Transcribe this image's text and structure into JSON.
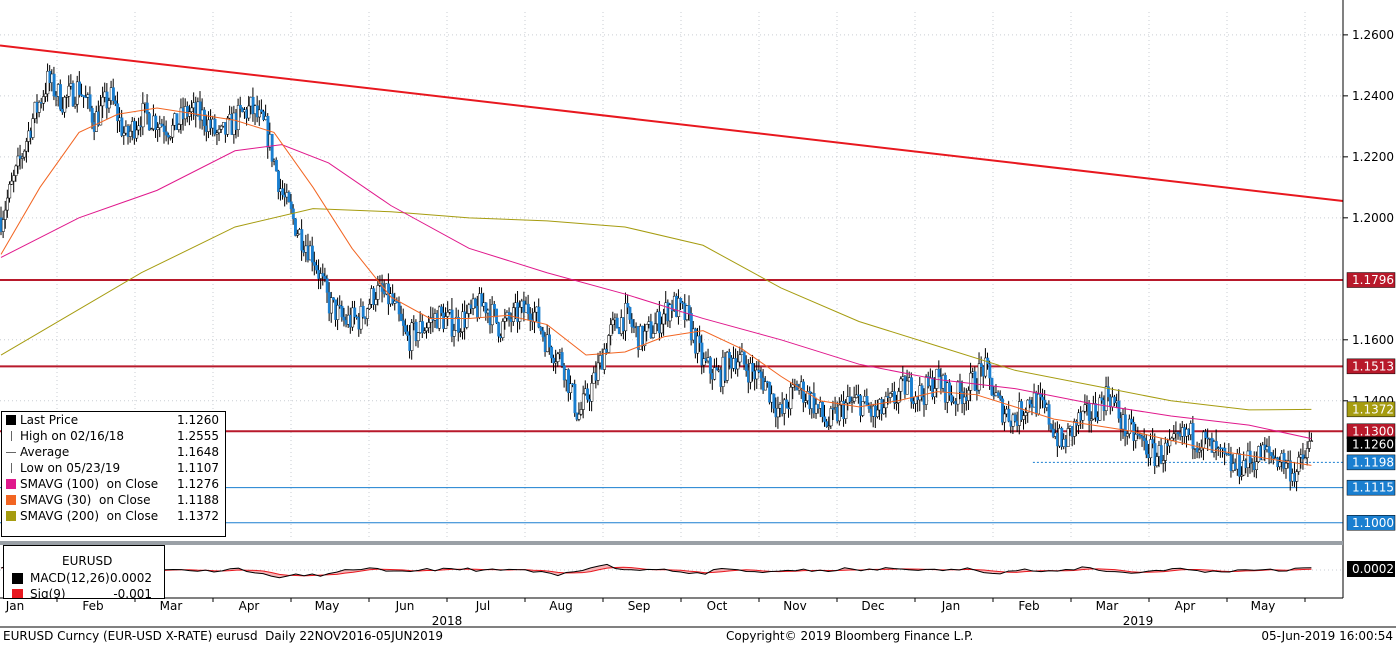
{
  "chart_data": {
    "type": "candlestick",
    "y_axis": {
      "position": "right",
      "ticks": [
        "1.2600",
        "1.2400",
        "1.2200",
        "1.2000",
        "1.1600",
        "1.1400"
      ],
      "ylim": [
        1.095,
        1.2675
      ]
    },
    "x_axis": {
      "months": [
        "Jan",
        "Feb",
        "Mar",
        "Apr",
        "May",
        "Jun",
        "Jul",
        "Aug",
        "Sep",
        "Oct",
        "Nov",
        "Dec",
        "Jan",
        "Feb",
        "Mar",
        "Apr",
        "May"
      ],
      "years": [
        "2018",
        "2019"
      ]
    },
    "price_series": [
      [
        0,
        1.2
      ],
      [
        0.2,
        1.215
      ],
      [
        0.4,
        1.232
      ],
      [
        0.6,
        1.245
      ],
      [
        0.8,
        1.238
      ],
      [
        1.0,
        1.243
      ],
      [
        1.2,
        1.232
      ],
      [
        1.4,
        1.24
      ],
      [
        1.6,
        1.226
      ],
      [
        1.8,
        1.234
      ],
      [
        2.0,
        1.232
      ],
      [
        2.2,
        1.229
      ],
      [
        2.4,
        1.235
      ],
      [
        2.6,
        1.233
      ],
      [
        2.8,
        1.226
      ],
      [
        3.0,
        1.232
      ],
      [
        3.2,
        1.236
      ],
      [
        3.4,
        1.229
      ],
      [
        3.6,
        1.208
      ],
      [
        3.8,
        1.196
      ],
      [
        4.0,
        1.188
      ],
      [
        4.2,
        1.172
      ],
      [
        4.4,
        1.166
      ],
      [
        4.6,
        1.167
      ],
      [
        4.8,
        1.176
      ],
      [
        5.0,
        1.173
      ],
      [
        5.2,
        1.16
      ],
      [
        5.4,
        1.164
      ],
      [
        5.6,
        1.168
      ],
      [
        5.8,
        1.165
      ],
      [
        6.0,
        1.168
      ],
      [
        6.2,
        1.172
      ],
      [
        6.4,
        1.164
      ],
      [
        6.6,
        1.168
      ],
      [
        6.8,
        1.171
      ],
      [
        7.0,
        1.159
      ],
      [
        7.2,
        1.153
      ],
      [
        7.4,
        1.135
      ],
      [
        7.6,
        1.146
      ],
      [
        7.8,
        1.162
      ],
      [
        8.0,
        1.168
      ],
      [
        8.2,
        1.16
      ],
      [
        8.4,
        1.165
      ],
      [
        8.6,
        1.172
      ],
      [
        8.8,
        1.167
      ],
      [
        9.0,
        1.152
      ],
      [
        9.2,
        1.148
      ],
      [
        9.4,
        1.155
      ],
      [
        9.6,
        1.15
      ],
      [
        9.8,
        1.146
      ],
      [
        10.0,
        1.135
      ],
      [
        10.2,
        1.145
      ],
      [
        10.4,
        1.14
      ],
      [
        10.6,
        1.132
      ],
      [
        10.8,
        1.138
      ],
      [
        11.0,
        1.14
      ],
      [
        11.2,
        1.135
      ],
      [
        11.4,
        1.139
      ],
      [
        11.6,
        1.145
      ],
      [
        11.8,
        1.142
      ],
      [
        12.0,
        1.147
      ],
      [
        12.2,
        1.141
      ],
      [
        12.4,
        1.144
      ],
      [
        12.6,
        1.151
      ],
      [
        12.8,
        1.138
      ],
      [
        13.0,
        1.134
      ],
      [
        13.2,
        1.141
      ],
      [
        13.4,
        1.136
      ],
      [
        13.6,
        1.125
      ],
      [
        13.8,
        1.133
      ],
      [
        14.0,
        1.136
      ],
      [
        14.2,
        1.143
      ],
      [
        14.4,
        1.131
      ],
      [
        14.6,
        1.127
      ],
      [
        14.8,
        1.122
      ],
      [
        15.0,
        1.124
      ],
      [
        15.2,
        1.129
      ],
      [
        15.4,
        1.127
      ],
      [
        15.6,
        1.122
      ],
      [
        15.8,
        1.118
      ],
      [
        16.0,
        1.12
      ],
      [
        16.2,
        1.123
      ],
      [
        16.4,
        1.121
      ],
      [
        16.6,
        1.116
      ],
      [
        16.8,
        1.126
      ]
    ],
    "sma100": [
      [
        0,
        1.187
      ],
      [
        1,
        1.2
      ],
      [
        2,
        1.209
      ],
      [
        3,
        1.222
      ],
      [
        3.6,
        1.224
      ],
      [
        4.2,
        1.218
      ],
      [
        5,
        1.204
      ],
      [
        6,
        1.19
      ],
      [
        7,
        1.182
      ],
      [
        8,
        1.175
      ],
      [
        9,
        1.167
      ],
      [
        10,
        1.16
      ],
      [
        11,
        1.152
      ],
      [
        12,
        1.147
      ],
      [
        13,
        1.144
      ],
      [
        14,
        1.139
      ],
      [
        15,
        1.135
      ],
      [
        16,
        1.132
      ],
      [
        16.8,
        1.1276
      ]
    ],
    "sma30": [
      [
        0,
        1.188
      ],
      [
        0.5,
        1.21
      ],
      [
        1,
        1.228
      ],
      [
        1.5,
        1.234
      ],
      [
        2,
        1.236
      ],
      [
        2.5,
        1.234
      ],
      [
        3,
        1.232
      ],
      [
        3.5,
        1.228
      ],
      [
        4,
        1.21
      ],
      [
        4.5,
        1.19
      ],
      [
        5,
        1.174
      ],
      [
        5.5,
        1.167
      ],
      [
        6,
        1.167
      ],
      [
        6.5,
        1.168
      ],
      [
        7,
        1.165
      ],
      [
        7.5,
        1.155
      ],
      [
        8,
        1.156
      ],
      [
        8.5,
        1.161
      ],
      [
        9,
        1.163
      ],
      [
        9.5,
        1.157
      ],
      [
        10,
        1.148
      ],
      [
        10.5,
        1.14
      ],
      [
        11,
        1.138
      ],
      [
        11.5,
        1.14
      ],
      [
        12,
        1.143
      ],
      [
        12.5,
        1.142
      ],
      [
        13,
        1.138
      ],
      [
        13.5,
        1.134
      ],
      [
        14,
        1.132
      ],
      [
        14.5,
        1.13
      ],
      [
        15,
        1.127
      ],
      [
        15.5,
        1.124
      ],
      [
        16,
        1.122
      ],
      [
        16.5,
        1.12
      ],
      [
        16.8,
        1.1188
      ]
    ],
    "sma200": [
      [
        0,
        1.155
      ],
      [
        1,
        1.17
      ],
      [
        1.8,
        1.182
      ],
      [
        3,
        1.197
      ],
      [
        4,
        1.203
      ],
      [
        5,
        1.202
      ],
      [
        6,
        1.2
      ],
      [
        7,
        1.199
      ],
      [
        8,
        1.197
      ],
      [
        9,
        1.191
      ],
      [
        10,
        1.177
      ],
      [
        11,
        1.166
      ],
      [
        12,
        1.158
      ],
      [
        13,
        1.15
      ],
      [
        14,
        1.145
      ],
      [
        15,
        1.14
      ],
      [
        16,
        1.137
      ],
      [
        16.8,
        1.1372
      ]
    ],
    "trendline": [
      [
        -0.2,
        1.2565
      ],
      [
        16.8,
        1.2055
      ]
    ],
    "horizontal_levels": [
      1.1796,
      1.1513,
      1.13,
      1.1198,
      1.1115,
      1.1
    ],
    "price_labels": [
      {
        "text": "1.1796",
        "value": 1.1796,
        "color": "#b8192b"
      },
      {
        "text": "1.1513",
        "value": 1.1513,
        "color": "#b8192b"
      },
      {
        "text": "1.1372",
        "value": 1.1372,
        "color": "#a69c10"
      },
      {
        "text": "1.1300",
        "value": 1.13,
        "color": "#b8192b"
      },
      {
        "text": "1.1260",
        "value": 1.126,
        "color": "#000000"
      },
      {
        "text": "1.1198",
        "value": 1.1198,
        "color": "#1a7fd0"
      },
      {
        "text": "1.1115",
        "value": 1.1115,
        "color": "#1a7fd0"
      },
      {
        "text": "1.1000",
        "value": 1.1,
        "color": "#1a7fd0"
      }
    ],
    "macd_label": "0.0002"
  },
  "legend": {
    "rows": [
      {
        "label": "Last Price",
        "value": "1.1260",
        "color": "#000000"
      },
      {
        "label": "High on 02/16/18",
        "value": "1.2555",
        "color": ""
      },
      {
        "label": "Average",
        "value": "1.1648",
        "color": ""
      },
      {
        "label": "Low on 05/23/19",
        "value": "1.1107",
        "color": ""
      },
      {
        "label": "SMAVG (100)  on Close",
        "value": "1.1276",
        "color": "#e0188c"
      },
      {
        "label": "SMAVG (30)  on Close",
        "value": "1.1188",
        "color": "#f26522"
      },
      {
        "label": "SMAVG (200)  on Close",
        "value": "1.1372",
        "color": "#a69c10"
      }
    ]
  },
  "macd_legend": {
    "title": "EURUSD",
    "rows": [
      {
        "label": "MACD(12,26)",
        "value": "0.0002",
        "color": "#000000"
      },
      {
        "label": "Sig(9)",
        "value": "-0.001",
        "color": "#e8181f"
      }
    ]
  },
  "footer": {
    "left": "EURUSD Curncy (EUR-USD X-RATE) eurusd  Daily 22NOV2016-05JUN2019",
    "center": "Copyright© 2019 Bloomberg Finance L.P.",
    "right": "05-Jun-2019 16:00:54"
  },
  "colors": {
    "up_candle": "#ffffff",
    "down_candle": "#1a7fd0",
    "trend": "#e8181f",
    "levels": "#b8192b",
    "support": "#1a7fd0"
  }
}
